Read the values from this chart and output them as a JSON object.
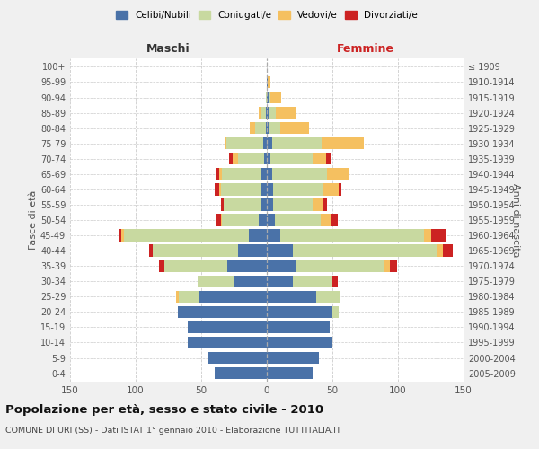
{
  "age_groups": [
    "0-4",
    "5-9",
    "10-14",
    "15-19",
    "20-24",
    "25-29",
    "30-34",
    "35-39",
    "40-44",
    "45-49",
    "50-54",
    "55-59",
    "60-64",
    "65-69",
    "70-74",
    "75-79",
    "80-84",
    "85-89",
    "90-94",
    "95-99",
    "100+"
  ],
  "birth_years": [
    "2005-2009",
    "2000-2004",
    "1995-1999",
    "1990-1994",
    "1985-1989",
    "1980-1984",
    "1975-1979",
    "1970-1974",
    "1965-1969",
    "1960-1964",
    "1955-1959",
    "1950-1954",
    "1945-1949",
    "1940-1944",
    "1935-1939",
    "1930-1934",
    "1925-1929",
    "1920-1924",
    "1915-1919",
    "1910-1914",
    "≤ 1909"
  ],
  "male": {
    "celibe": [
      40,
      45,
      60,
      60,
      68,
      52,
      25,
      30,
      22,
      14,
      6,
      5,
      5,
      4,
      2,
      3,
      1,
      1,
      0,
      0,
      0
    ],
    "coniugato": [
      0,
      0,
      0,
      0,
      0,
      15,
      28,
      48,
      65,
      95,
      28,
      28,
      30,
      30,
      20,
      28,
      8,
      3,
      1,
      0,
      0
    ],
    "vedovo": [
      0,
      0,
      0,
      0,
      0,
      2,
      0,
      0,
      0,
      2,
      1,
      0,
      1,
      2,
      4,
      1,
      4,
      2,
      0,
      0,
      0
    ],
    "divorziato": [
      0,
      0,
      0,
      0,
      0,
      0,
      0,
      4,
      3,
      2,
      4,
      2,
      4,
      3,
      3,
      0,
      0,
      0,
      0,
      0,
      0
    ]
  },
  "female": {
    "nubile": [
      35,
      40,
      50,
      48,
      50,
      38,
      20,
      22,
      20,
      10,
      6,
      5,
      5,
      4,
      3,
      4,
      2,
      2,
      2,
      1,
      0
    ],
    "coniugata": [
      0,
      0,
      0,
      0,
      5,
      18,
      30,
      68,
      110,
      110,
      35,
      30,
      38,
      42,
      32,
      38,
      8,
      5,
      1,
      0,
      0
    ],
    "vedova": [
      0,
      0,
      0,
      0,
      0,
      0,
      0,
      4,
      4,
      5,
      8,
      8,
      12,
      16,
      10,
      32,
      22,
      15,
      8,
      2,
      0
    ],
    "divorziata": [
      0,
      0,
      0,
      0,
      0,
      0,
      4,
      5,
      8,
      12,
      5,
      3,
      2,
      0,
      4,
      0,
      0,
      0,
      0,
      0,
      0
    ]
  },
  "colors": {
    "celibe": "#4a72a8",
    "coniugato": "#c8d9a0",
    "vedovo": "#f5c060",
    "divorziato": "#cc2222"
  },
  "title": "Popolazione per età, sesso e stato civile - 2010",
  "subtitle": "COMUNE DI URI (SS) - Dati ISTAT 1° gennaio 2010 - Elaborazione TUTTITALIA.IT",
  "ylabel_left": "Fasce di età",
  "ylabel_right": "Anni di nascita",
  "xlabel_left": "Maschi",
  "xlabel_right": "Femmine",
  "xlim": 150,
  "bg_color": "#f0f0f0",
  "plot_bg": "#ffffff",
  "grid_color": "#cccccc"
}
